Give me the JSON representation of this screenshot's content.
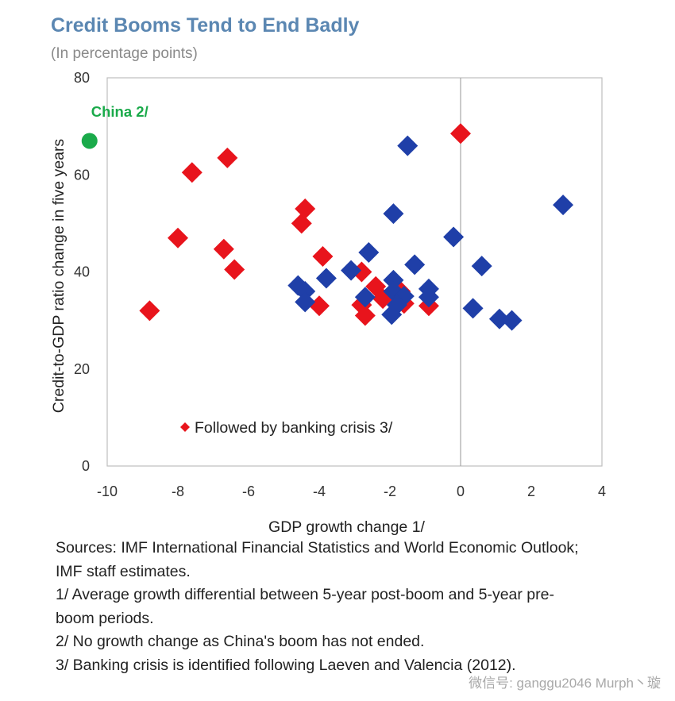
{
  "chart_data": {
    "type": "scatter",
    "title": "Credit Booms Tend to End Badly",
    "subtitle": "(In percentage points)",
    "xlabel": "GDP growth change 1/",
    "ylabel": "Credit-to-GDP ratio change in five years",
    "xlim": [
      -10,
      4
    ],
    "ylim": [
      0,
      80
    ],
    "xticks": [
      -10,
      -8,
      -6,
      -4,
      -2,
      0,
      2,
      4
    ],
    "yticks": [
      0,
      20,
      40,
      60,
      80
    ],
    "grid": false,
    "legend_position": "bottom-left",
    "series": [
      {
        "name": "Followed by banking crisis 3/",
        "color": "#e8141c",
        "marker": "diamond",
        "points": [
          {
            "x": -8.8,
            "y": 32
          },
          {
            "x": -8.0,
            "y": 47
          },
          {
            "x": -7.6,
            "y": 60.5
          },
          {
            "x": -6.6,
            "y": 63.5
          },
          {
            "x": -6.7,
            "y": 44.7
          },
          {
            "x": -6.4,
            "y": 40.5
          },
          {
            "x": -4.5,
            "y": 50
          },
          {
            "x": -4.4,
            "y": 53
          },
          {
            "x": -3.9,
            "y": 43.2
          },
          {
            "x": -4.0,
            "y": 33
          },
          {
            "x": -2.8,
            "y": 40
          },
          {
            "x": -2.4,
            "y": 37
          },
          {
            "x": -2.8,
            "y": 33.2
          },
          {
            "x": -2.7,
            "y": 31
          },
          {
            "x": -2.2,
            "y": 34.5
          },
          {
            "x": -1.7,
            "y": 36
          },
          {
            "x": -1.6,
            "y": 33.5
          },
          {
            "x": -0.9,
            "y": 33
          },
          {
            "x": 0.0,
            "y": 68.5
          }
        ]
      },
      {
        "name": "",
        "color": "#1f3fa8",
        "marker": "diamond",
        "points": [
          {
            "x": -1.5,
            "y": 66
          },
          {
            "x": 2.9,
            "y": 53.8
          },
          {
            "x": -1.9,
            "y": 52
          },
          {
            "x": -0.2,
            "y": 47.2
          },
          {
            "x": -2.6,
            "y": 44
          },
          {
            "x": -1.3,
            "y": 41.5
          },
          {
            "x": 0.6,
            "y": 41.2
          },
          {
            "x": -3.1,
            "y": 40.3
          },
          {
            "x": -3.8,
            "y": 38.7
          },
          {
            "x": -1.9,
            "y": 38.3
          },
          {
            "x": -4.6,
            "y": 37.2
          },
          {
            "x": -4.4,
            "y": 36
          },
          {
            "x": -0.9,
            "y": 36.5
          },
          {
            "x": -1.9,
            "y": 36
          },
          {
            "x": -1.6,
            "y": 35
          },
          {
            "x": -0.9,
            "y": 34.8
          },
          {
            "x": -2.7,
            "y": 34.8
          },
          {
            "x": -4.4,
            "y": 33.8
          },
          {
            "x": -1.8,
            "y": 33.2
          },
          {
            "x": 0.35,
            "y": 32.5
          },
          {
            "x": -1.95,
            "y": 31.2
          },
          {
            "x": 1.1,
            "y": 30.3
          },
          {
            "x": 1.45,
            "y": 30
          }
        ]
      },
      {
        "name": "China 2/",
        "color": "#1aaa4a",
        "marker": "circle",
        "points": [
          {
            "x": -10.5,
            "y": 67
          }
        ]
      }
    ]
  },
  "notes": [
    "Sources: IMF International Financial Statistics and World Economic Outlook;",
    "IMF staff estimates.",
    "1/ Average growth differential between 5-year post-boom and 5-year pre-",
    "boom periods.",
    "2/ No growth change as China's boom has not ended.",
    "3/ Banking crisis is identified following Laeven and Valencia (2012)."
  ],
  "watermark": "微信号: ganggu2046  Murph丶璇"
}
